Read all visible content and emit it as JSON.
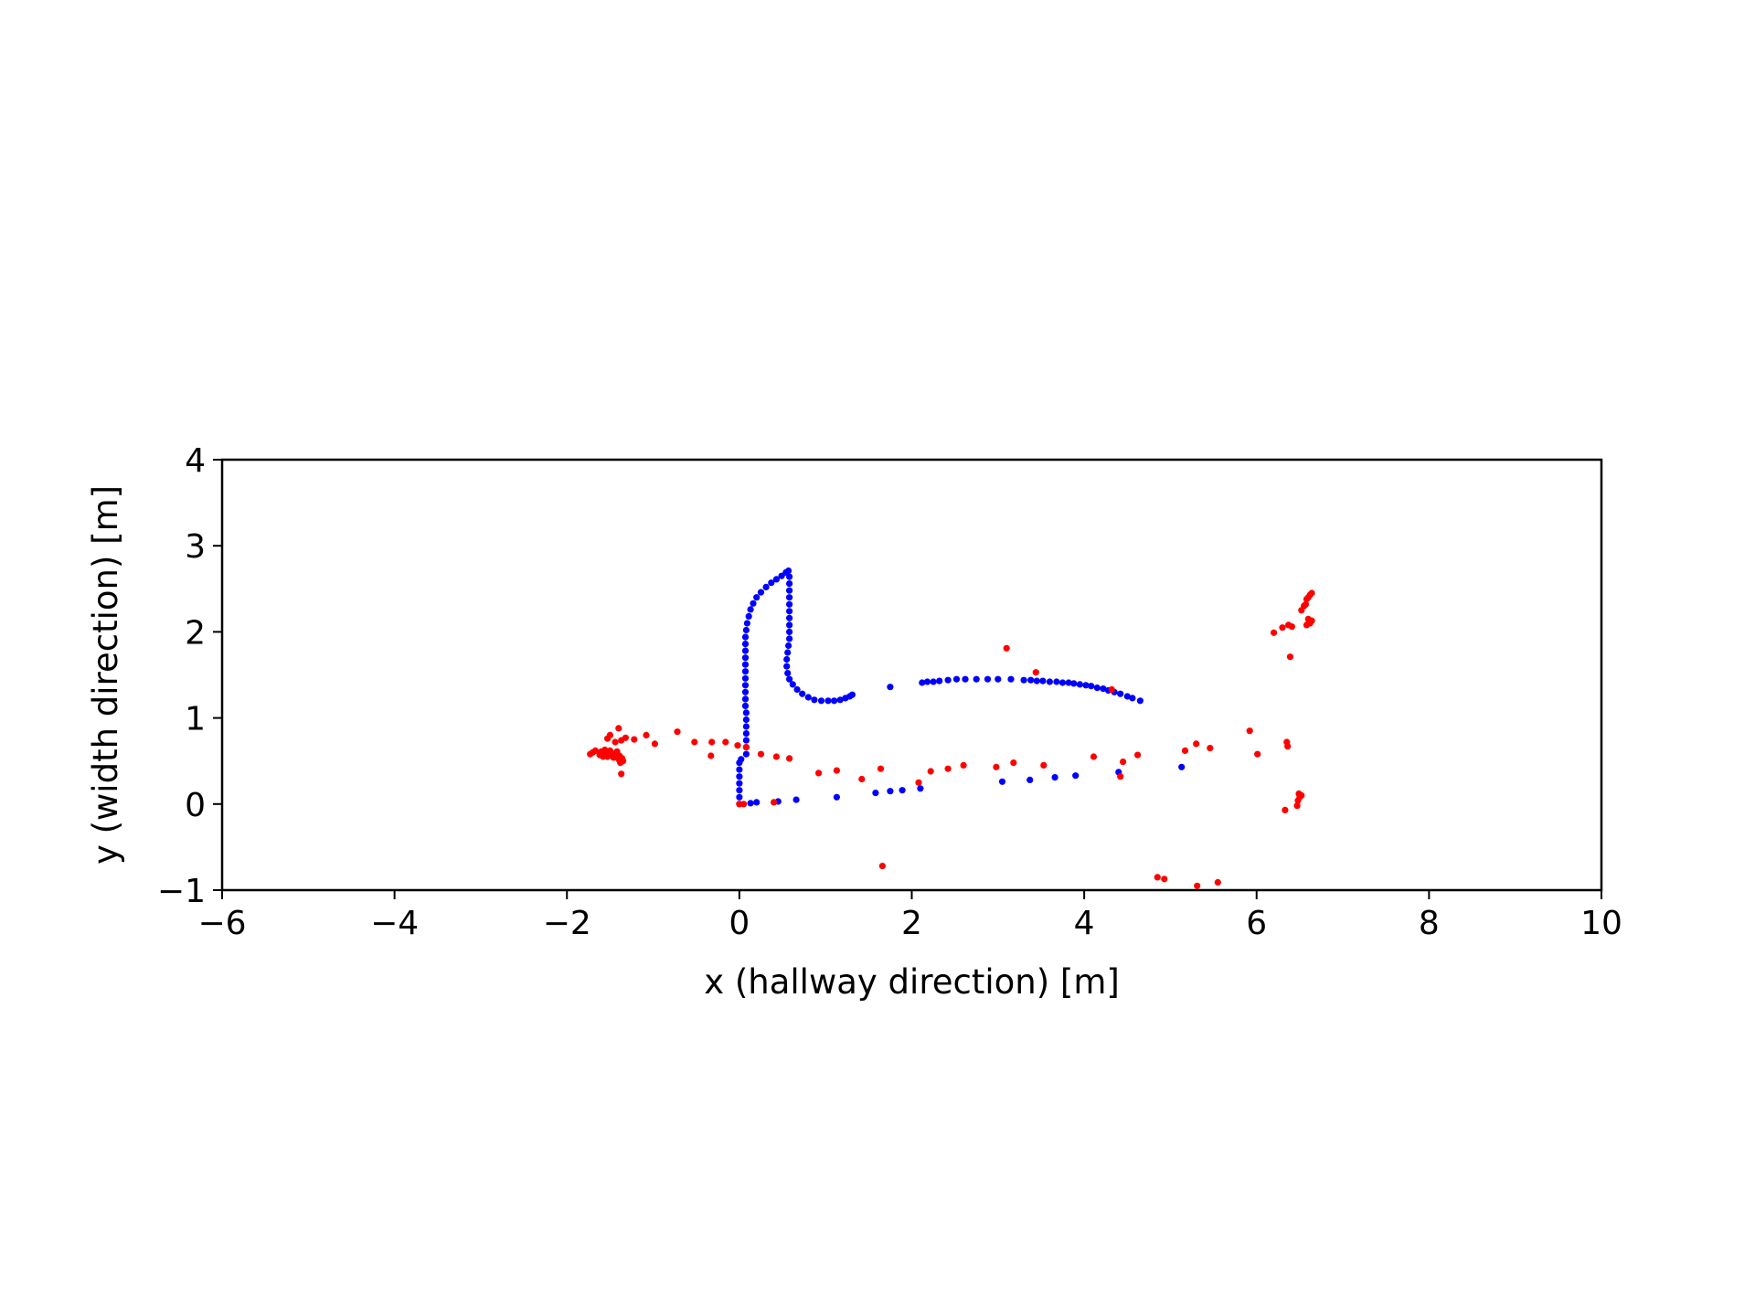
{
  "chart_data": {
    "type": "scatter",
    "title": "",
    "xlabel": "x (hallway direction) [m]",
    "ylabel": "y (width direction) [m]",
    "xlim": [
      -6,
      10
    ],
    "ylim": [
      -1,
      4
    ],
    "xticks": [
      -6,
      -4,
      -2,
      0,
      2,
      4,
      6,
      8,
      10
    ],
    "xtick_labels": [
      "−6",
      "−4",
      "−2",
      "0",
      "2",
      "4",
      "6",
      "8",
      "10"
    ],
    "yticks": [
      -1,
      0,
      1,
      2,
      3,
      4
    ],
    "ytick_labels": [
      "−1",
      "0",
      "1",
      "2",
      "3",
      "4"
    ],
    "grid": false,
    "legend": null,
    "series": [
      {
        "color": "#0000ff",
        "points": [
          [
            0.0,
            0.0
          ],
          [
            0.0,
            0.08
          ],
          [
            0.0,
            0.16
          ],
          [
            0.0,
            0.24
          ],
          [
            0.0,
            0.32
          ],
          [
            0.0,
            0.4
          ],
          [
            0.0,
            0.48
          ],
          [
            0.02,
            0.52
          ],
          [
            0.08,
            0.58
          ],
          [
            0.08,
            0.66
          ],
          [
            0.08,
            0.74
          ],
          [
            0.08,
            0.82
          ],
          [
            0.08,
            0.9
          ],
          [
            0.08,
            0.98
          ],
          [
            0.08,
            1.06
          ],
          [
            0.07,
            1.14
          ],
          [
            0.07,
            1.22
          ],
          [
            0.07,
            1.3
          ],
          [
            0.07,
            1.38
          ],
          [
            0.07,
            1.46
          ],
          [
            0.07,
            1.54
          ],
          [
            0.07,
            1.62
          ],
          [
            0.07,
            1.7
          ],
          [
            0.07,
            1.78
          ],
          [
            0.07,
            1.86
          ],
          [
            0.07,
            1.94
          ],
          [
            0.08,
            2.02
          ],
          [
            0.09,
            2.1
          ],
          [
            0.11,
            2.18
          ],
          [
            0.13,
            2.26
          ],
          [
            0.16,
            2.33
          ],
          [
            0.2,
            2.4
          ],
          [
            0.25,
            2.46
          ],
          [
            0.31,
            2.52
          ],
          [
            0.37,
            2.57
          ],
          [
            0.43,
            2.61
          ],
          [
            0.49,
            2.65
          ],
          [
            0.54,
            2.69
          ],
          [
            0.57,
            2.71
          ],
          [
            0.58,
            2.64
          ],
          [
            0.58,
            2.56
          ],
          [
            0.58,
            2.48
          ],
          [
            0.58,
            2.4
          ],
          [
            0.58,
            2.32
          ],
          [
            0.58,
            2.24
          ],
          [
            0.58,
            2.16
          ],
          [
            0.58,
            2.08
          ],
          [
            0.58,
            2.0
          ],
          [
            0.58,
            1.92
          ],
          [
            0.57,
            1.84
          ],
          [
            0.56,
            1.76
          ],
          [
            0.55,
            1.68
          ],
          [
            0.55,
            1.6
          ],
          [
            0.56,
            1.52
          ],
          [
            0.58,
            1.45
          ],
          [
            0.62,
            1.39
          ],
          [
            0.67,
            1.33
          ],
          [
            0.73,
            1.28
          ],
          [
            0.8,
            1.24
          ],
          [
            0.87,
            1.21
          ],
          [
            0.95,
            1.2
          ],
          [
            1.03,
            1.2
          ],
          [
            1.1,
            1.2
          ],
          [
            1.17,
            1.21
          ],
          [
            1.23,
            1.23
          ],
          [
            1.28,
            1.25
          ],
          [
            1.31,
            1.27
          ],
          [
            1.75,
            1.36
          ],
          [
            2.12,
            1.41
          ],
          [
            2.18,
            1.42
          ],
          [
            2.25,
            1.42
          ],
          [
            2.32,
            1.43
          ],
          [
            2.42,
            1.44
          ],
          [
            2.52,
            1.45
          ],
          [
            2.62,
            1.45
          ],
          [
            2.75,
            1.45
          ],
          [
            2.88,
            1.45
          ],
          [
            3.0,
            1.45
          ],
          [
            3.15,
            1.45
          ],
          [
            3.3,
            1.44
          ],
          [
            3.38,
            1.44
          ],
          [
            3.45,
            1.43
          ],
          [
            3.52,
            1.43
          ],
          [
            3.6,
            1.42
          ],
          [
            3.68,
            1.42
          ],
          [
            3.75,
            1.41
          ],
          [
            3.82,
            1.41
          ],
          [
            3.88,
            1.4
          ],
          [
            3.95,
            1.39
          ],
          [
            4.02,
            1.38
          ],
          [
            4.08,
            1.37
          ],
          [
            4.15,
            1.35
          ],
          [
            4.22,
            1.34
          ],
          [
            4.28,
            1.32
          ],
          [
            4.35,
            1.3
          ],
          [
            4.42,
            1.28
          ],
          [
            4.5,
            1.25
          ],
          [
            4.56,
            1.23
          ],
          [
            4.65,
            1.2
          ],
          [
            0.13,
            0.01
          ],
          [
            0.2,
            0.02
          ],
          [
            0.45,
            0.03
          ],
          [
            0.66,
            0.05
          ],
          [
            1.13,
            0.08
          ],
          [
            1.58,
            0.13
          ],
          [
            1.75,
            0.15
          ],
          [
            1.89,
            0.16
          ],
          [
            2.1,
            0.18
          ],
          [
            3.05,
            0.26
          ],
          [
            3.37,
            0.28
          ],
          [
            3.66,
            0.31
          ],
          [
            3.9,
            0.33
          ],
          [
            4.4,
            0.37
          ],
          [
            5.13,
            0.43
          ]
        ]
      },
      {
        "color": "#ff0000",
        "points": [
          [
            -1.73,
            0.58
          ],
          [
            -1.7,
            0.6
          ],
          [
            -1.67,
            0.62
          ],
          [
            -1.62,
            0.57
          ],
          [
            -1.6,
            0.61
          ],
          [
            -1.58,
            0.55
          ],
          [
            -1.56,
            0.63
          ],
          [
            -1.55,
            0.58
          ],
          [
            -1.53,
            0.55
          ],
          [
            -1.52,
            0.6
          ],
          [
            -1.5,
            0.62
          ],
          [
            -1.48,
            0.57
          ],
          [
            -1.46,
            0.54
          ],
          [
            -1.44,
            0.59
          ],
          [
            -1.42,
            0.61
          ],
          [
            -1.4,
            0.52
          ],
          [
            -1.39,
            0.56
          ],
          [
            -1.38,
            0.48
          ],
          [
            -1.36,
            0.53
          ],
          [
            -1.35,
            0.5
          ],
          [
            -1.53,
            0.76
          ],
          [
            -1.5,
            0.8
          ],
          [
            -1.44,
            0.72
          ],
          [
            -1.4,
            0.88
          ],
          [
            -1.37,
            0.74
          ],
          [
            -1.32,
            0.77
          ],
          [
            -1.37,
            0.35
          ],
          [
            -1.22,
            0.75
          ],
          [
            -1.08,
            0.8
          ],
          [
            -0.98,
            0.7
          ],
          [
            -0.72,
            0.84
          ],
          [
            -0.52,
            0.72
          ],
          [
            -0.32,
            0.72
          ],
          [
            -0.16,
            0.72
          ],
          [
            -0.02,
            0.68
          ],
          [
            0.08,
            0.66
          ],
          [
            -0.33,
            0.56
          ],
          [
            0.25,
            0.58
          ],
          [
            0.43,
            0.55
          ],
          [
            0.58,
            0.53
          ],
          [
            0.92,
            0.36
          ],
          [
            1.13,
            0.39
          ],
          [
            1.42,
            0.29
          ],
          [
            1.64,
            0.41
          ],
          [
            2.08,
            0.25
          ],
          [
            2.22,
            0.38
          ],
          [
            2.42,
            0.41
          ],
          [
            2.6,
            0.45
          ],
          [
            2.98,
            0.43
          ],
          [
            3.18,
            0.48
          ],
          [
            3.53,
            0.45
          ],
          [
            4.11,
            0.55
          ],
          [
            4.45,
            0.49
          ],
          [
            4.42,
            0.32
          ],
          [
            4.62,
            0.57
          ],
          [
            5.17,
            0.62
          ],
          [
            5.3,
            0.7
          ],
          [
            5.46,
            0.65
          ],
          [
            5.92,
            0.85
          ],
          [
            6.01,
            0.58
          ],
          [
            6.35,
            0.72
          ],
          [
            6.36,
            0.67
          ],
          [
            6.2,
            1.99
          ],
          [
            6.3,
            2.05
          ],
          [
            6.37,
            2.08
          ],
          [
            6.41,
            2.06
          ],
          [
            6.39,
            1.71
          ],
          [
            6.52,
            2.25
          ],
          [
            6.55,
            2.3
          ],
          [
            6.58,
            2.38
          ],
          [
            6.6,
            2.4
          ],
          [
            6.62,
            2.43
          ],
          [
            6.64,
            2.45
          ],
          [
            6.57,
            2.32
          ],
          [
            6.6,
            2.15
          ],
          [
            6.62,
            2.1
          ],
          [
            6.64,
            2.13
          ],
          [
            6.58,
            2.08
          ],
          [
            6.61,
            2.12
          ],
          [
            6.49,
            0.12
          ],
          [
            6.5,
            0.08
          ],
          [
            6.48,
            0.04
          ],
          [
            6.47,
            -0.02
          ],
          [
            6.52,
            0.1
          ],
          [
            6.33,
            -0.07
          ],
          [
            3.1,
            1.81
          ],
          [
            3.44,
            1.53
          ],
          [
            4.32,
            1.33
          ],
          [
            0.0,
            0.0
          ],
          [
            0.05,
            0.0
          ],
          [
            0.4,
            0.02
          ],
          [
            1.66,
            -0.72
          ],
          [
            4.85,
            -0.85
          ],
          [
            4.93,
            -0.87
          ],
          [
            5.31,
            -0.95
          ],
          [
            5.55,
            -0.91
          ]
        ]
      }
    ]
  }
}
